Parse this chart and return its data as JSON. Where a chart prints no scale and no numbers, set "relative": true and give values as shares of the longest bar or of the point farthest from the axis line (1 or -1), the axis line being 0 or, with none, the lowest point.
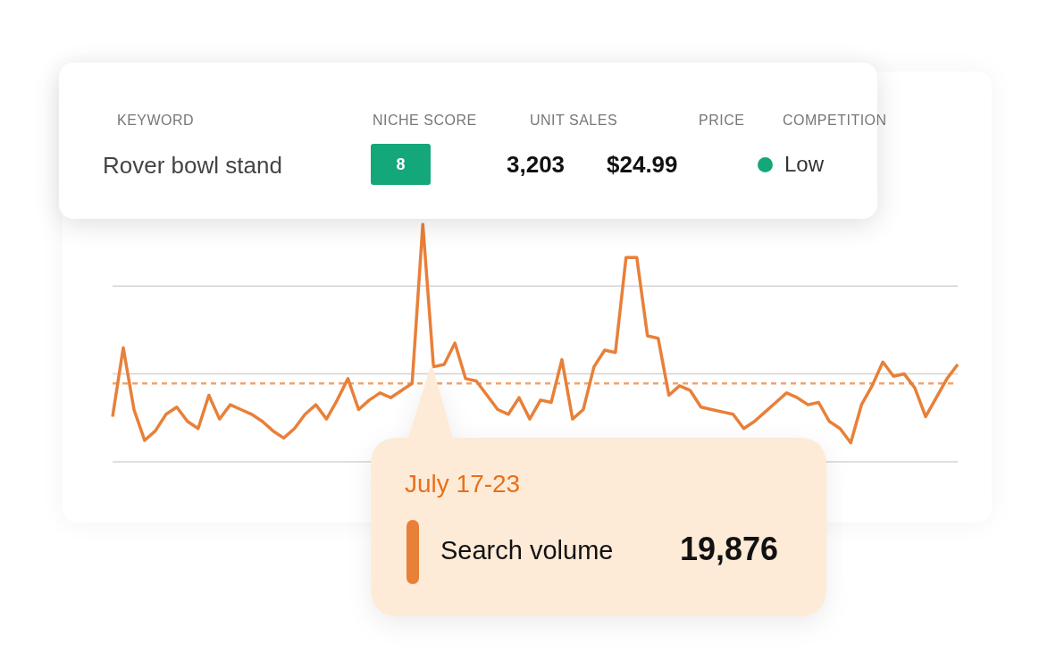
{
  "chart_data": {
    "type": "line",
    "relative": true,
    "legend": false,
    "marker": "none",
    "line_style": "solid",
    "categories": [
      null,
      null,
      null,
      null,
      null,
      null,
      null,
      null,
      null,
      null,
      null,
      null,
      null,
      null,
      null,
      null,
      null,
      null,
      null,
      null,
      null,
      null,
      null,
      null,
      null,
      null,
      null,
      null,
      null,
      null,
      null,
      null,
      null,
      null,
      null,
      null,
      null,
      null,
      null,
      null,
      null,
      null,
      null,
      null,
      null,
      null,
      null,
      null,
      null,
      null,
      null,
      null,
      null,
      null,
      null,
      null,
      null,
      null,
      null,
      null,
      null,
      null,
      null,
      null,
      null,
      null,
      null,
      null,
      null,
      null,
      null,
      null,
      null,
      null,
      null,
      null,
      null,
      null,
      null,
      null
    ],
    "series": [
      {
        "color": "#e8803a",
        "values": [
          0.19,
          0.48,
          0.22,
          0.09,
          0.13,
          0.2,
          0.23,
          0.17,
          0.14,
          0.28,
          0.18,
          0.24,
          0.22,
          0.2,
          0.17,
          0.13,
          0.1,
          0.14,
          0.2,
          0.24,
          0.18,
          0.26,
          0.35,
          0.22,
          0.26,
          0.29,
          0.27,
          0.3,
          0.33,
          1,
          0.4,
          0.41,
          0.5,
          0.35,
          0.34,
          0.28,
          0.22,
          0.2,
          0.27,
          0.18,
          0.26,
          0.25,
          0.43,
          0.18,
          0.22,
          0.4,
          0.47,
          0.46,
          0.86,
          0.86,
          0.53,
          0.52,
          0.28,
          0.32,
          0.3,
          0.23,
          0.22,
          0.21,
          0.2,
          0.14,
          0.17,
          0.21,
          0.25,
          0.29,
          0.27,
          0.24,
          0.25,
          0.17,
          0.14,
          0.08,
          0.24,
          0.32,
          0.42,
          0.36,
          0.37,
          0.31,
          0.19,
          0.27,
          0.35,
          0.41
        ]
      }
    ],
    "grid": false,
    "ref_lines": [
      {
        "axis": "y",
        "value": 0,
        "color": "#d4d4d4",
        "line_style": "solid"
      },
      {
        "axis": "y",
        "value": 0.37,
        "color": "#d4d4d4",
        "line_style": "solid"
      },
      {
        "axis": "y",
        "value": 0.74,
        "color": "#d4d4d4",
        "line_style": "solid"
      },
      {
        "axis": "y",
        "value": 0.33,
        "color": "#f0a46e",
        "line_style": "dashed"
      }
    ],
    "annotations": [
      "KEYWORD",
      "NICHE SCORE",
      "UNIT SALES",
      "PRICE",
      "COMPETITION",
      "Rover bowl stand",
      "8",
      "3,203",
      "$24.99",
      "Low",
      "July 17-23",
      "Search volume",
      "19,876"
    ]
  }
}
